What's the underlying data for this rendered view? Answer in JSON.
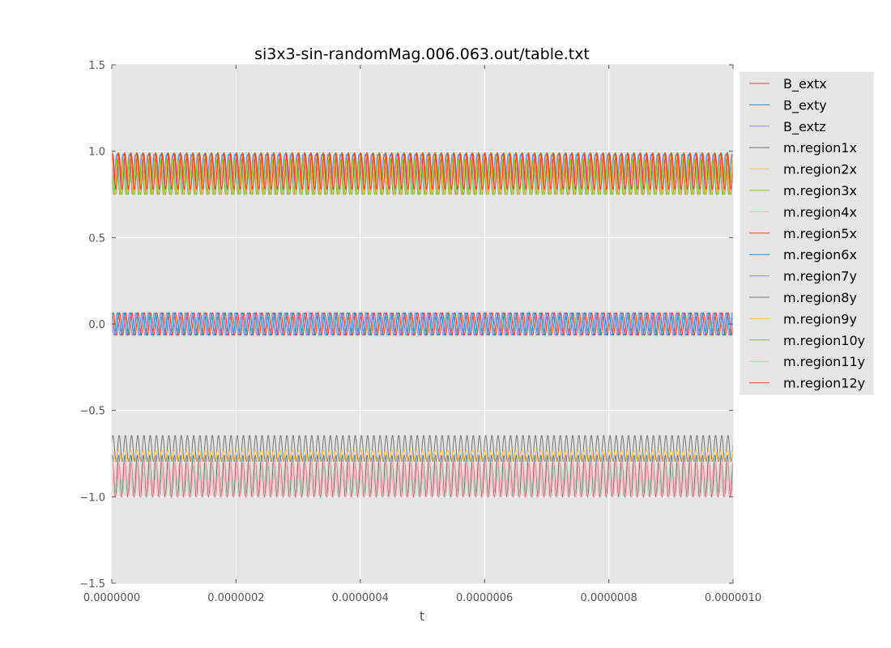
{
  "chart_data": {
    "type": "line",
    "title": "si3x3-sin-randomMag.006.063.out/table.txt",
    "xlabel": "t",
    "ylabel": "",
    "xlim": [
      0,
      1e-06
    ],
    "ylim": [
      -1.5,
      1.5
    ],
    "x_ticks": [
      "0.0000000",
      "0.0000002",
      "0.0000004",
      "0.0000006",
      "0.0000008",
      "0.0000010"
    ],
    "y_ticks": [
      "−1.5",
      "−1.0",
      "−0.5",
      "0.0",
      "0.5",
      "1.0",
      "1.5"
    ],
    "grid": true,
    "background": "#e5e5e5",
    "legend_position": "outside-right-top",
    "oscillation_cycles": 100,
    "series": [
      {
        "name": "B_extx",
        "color": "#e24a33",
        "center": 0.0,
        "amplitude": 0.065,
        "phase": 0.0
      },
      {
        "name": "B_exty",
        "color": "#348abd",
        "center": 0.0,
        "amplitude": 0.065,
        "phase": 1.3
      },
      {
        "name": "B_extz",
        "color": "#988ed5",
        "center": 0.0,
        "amplitude": 0.065,
        "phase": 2.6
      },
      {
        "name": "m.region1x",
        "color": "#777777",
        "center": -0.72,
        "amplitude": 0.075,
        "phase": 0.4
      },
      {
        "name": "m.region2x",
        "color": "#fbc15e",
        "center": -0.76,
        "amplitude": 0.03,
        "phase": 1.1
      },
      {
        "name": "m.region3x",
        "color": "#8eba42",
        "center": 0.87,
        "amplitude": 0.12,
        "phase": 0.7
      },
      {
        "name": "m.region4x",
        "color": "#ffb5b8",
        "center": -0.9,
        "amplitude": 0.1,
        "phase": 2.1
      },
      {
        "name": "m.region5x",
        "color": "#e24a33",
        "center": 0.89,
        "amplitude": 0.1,
        "phase": 1.5
      },
      {
        "name": "m.region6x",
        "color": "#348abd",
        "center": 0.89,
        "amplitude": 0.09,
        "phase": 2.4
      },
      {
        "name": "m.region7y",
        "color": "#988ed5",
        "center": 0.88,
        "amplitude": 0.1,
        "phase": 3.0
      },
      {
        "name": "m.region8y",
        "color": "#777777",
        "center": -0.88,
        "amplitude": 0.12,
        "phase": 0.9
      },
      {
        "name": "m.region9y",
        "color": "#fbc15e",
        "center": 0.86,
        "amplitude": 0.11,
        "phase": 1.8
      },
      {
        "name": "m.region10y",
        "color": "#8eba42",
        "center": 0.85,
        "amplitude": 0.1,
        "phase": 2.8
      },
      {
        "name": "m.region11y",
        "color": "#ffb5b8",
        "center": -0.9,
        "amplitude": 0.1,
        "phase": 0.2
      },
      {
        "name": "m.region12y",
        "color": "#e24a33",
        "center": 0.88,
        "amplitude": 0.1,
        "phase": 0.5
      }
    ]
  }
}
